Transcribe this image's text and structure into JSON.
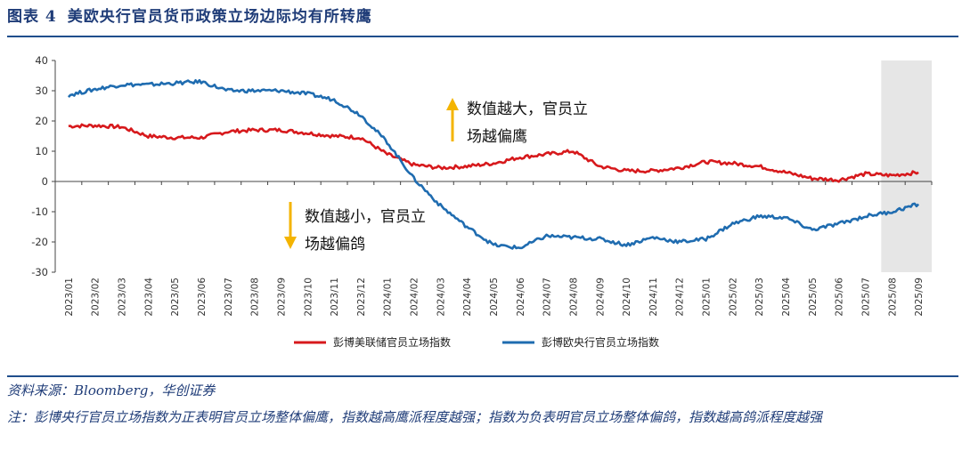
{
  "figure": {
    "label": "图表 4",
    "title": "美欧央行官员货币政策立场边际均有所转鹰"
  },
  "chart_data": {
    "type": "line",
    "title": "美欧央行官员货币政策立场边际均有所转鹰",
    "ylim": [
      -30,
      40
    ],
    "yticks": [
      40,
      30,
      20,
      10,
      0,
      -10,
      -20,
      -30
    ],
    "x_start": "2023/01",
    "x_end": "2025/10",
    "categories": [
      "2023/01",
      "2023/02",
      "2023/03",
      "2023/04",
      "2023/05",
      "2023/06",
      "2023/07",
      "2023/08",
      "2023/09",
      "2023/10",
      "2023/11",
      "2023/12",
      "2024/01",
      "2024/02",
      "2024/03",
      "2024/04",
      "2024/05",
      "2024/06",
      "2024/07",
      "2024/08",
      "2024/09",
      "2024/10",
      "2024/11",
      "2024/12",
      "2025/01",
      "2025/02",
      "2025/03",
      "2025/04",
      "2025/05",
      "2025/06",
      "2025/07",
      "2025/08",
      "2025/09"
    ],
    "shaded_region": [
      "2025/08",
      "2025/10"
    ],
    "series": [
      {
        "name": "彭博美联储官员立场指数",
        "color": "#d7191c",
        "values": [
          18.3,
          18.5,
          18,
          15,
          14.5,
          14.5,
          16.5,
          17,
          17,
          16,
          15,
          14.5,
          9,
          5.5,
          4.5,
          5,
          6,
          8,
          9,
          10,
          5,
          3.5,
          3.5,
          4.5,
          6.5,
          6,
          5,
          3,
          1,
          0.5,
          2.5,
          2,
          3
        ]
      },
      {
        "name": "彭博欧央行官员立场指数",
        "color": "#1f6cb0",
        "values": [
          28.5,
          30.5,
          32,
          32,
          32.5,
          33,
          30,
          30,
          30,
          29,
          27,
          22,
          13,
          1,
          -8,
          -15,
          -21,
          -22,
          -18,
          -18.5,
          -19,
          -21,
          -18.5,
          -20,
          -19,
          -14,
          -11.5,
          -12,
          -16,
          -14,
          -11.5,
          -10,
          -7.5
        ]
      }
    ]
  },
  "annotations": {
    "up_line1": "数值越大，官员立",
    "up_line2": "场越偏鹰",
    "down_line1": "数值越小，官员立",
    "down_line2": "场越偏鸽",
    "arrow_color": "#f4b400"
  },
  "footer": {
    "source": "资料来源：Bloomberg，华创证券",
    "note": "注：彭博央行官员立场指数为正表明官员立场整体偏鹰，指数越高鹰派程度越强；指数为负表明官员立场整体偏鸽，指数越高鸽派程度越强"
  }
}
